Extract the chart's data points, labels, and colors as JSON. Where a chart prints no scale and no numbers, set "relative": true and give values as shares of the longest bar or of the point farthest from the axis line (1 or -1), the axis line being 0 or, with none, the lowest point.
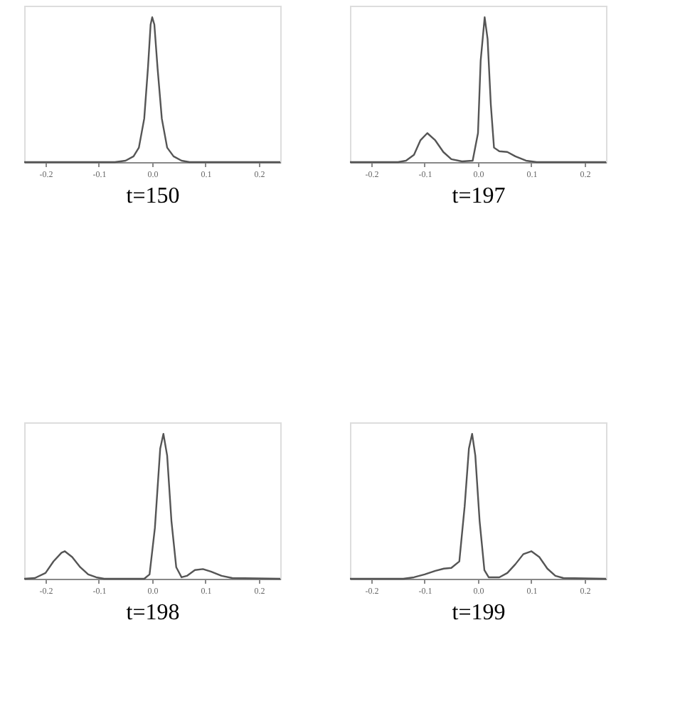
{
  "chart_data": [
    {
      "type": "line",
      "xlabel": "t=150",
      "relative": true,
      "grid": false,
      "tick_labels": "x",
      "xlim": [
        -0.24,
        0.24
      ],
      "xticks": [
        -0.2,
        -0.1,
        {
          "value": 0,
          "label": "0.0"
        },
        0.1,
        0.2
      ],
      "series": [
        {
          "color": "#555555",
          "x": [
            -0.24,
            -0.07,
            -0.05,
            -0.035,
            -0.025,
            -0.015,
            -0.008,
            -0.003,
            0,
            0.004,
            0.01,
            0.018,
            0.028,
            0.04,
            0.055,
            0.07,
            0.24
          ],
          "values": [
            0,
            0,
            0.01,
            0.04,
            0.1,
            0.3,
            0.65,
            0.95,
            1,
            0.95,
            0.65,
            0.3,
            0.1,
            0.04,
            0.01,
            0,
            0
          ]
        }
      ]
    },
    {
      "type": "line",
      "xlabel": "t=197",
      "relative": true,
      "grid": false,
      "tick_labels": "x",
      "xlim": [
        -0.24,
        0.24
      ],
      "xticks": [
        -0.2,
        -0.1,
        {
          "value": 0,
          "label": "0.0"
        },
        0.1,
        0.2
      ],
      "series": [
        {
          "color": "#555555",
          "x": [
            -0.24,
            -0.15,
            -0.135,
            -0.12,
            -0.108,
            -0.095,
            -0.08,
            -0.065,
            -0.05,
            -0.03,
            -0.01,
            0.0,
            0.005,
            0.0125,
            0.018,
            0.024,
            0.03,
            0.04,
            0.055,
            0.07,
            0.09,
            0.11,
            0.24
          ],
          "values": [
            0,
            0,
            0.01,
            0.05,
            0.15,
            0.2,
            0.15,
            0.07,
            0.02,
            0.005,
            0.01,
            0.2,
            0.7,
            1,
            0.85,
            0.4,
            0.1,
            0.075,
            0.07,
            0.04,
            0.01,
            0,
            0
          ]
        }
      ]
    },
    {
      "type": "line",
      "xlabel": "t=198",
      "relative": true,
      "grid": false,
      "tick_labels": "x",
      "xlim": [
        -0.24,
        0.24
      ],
      "xticks": [
        -0.2,
        -0.1,
        {
          "value": 0,
          "label": "0.0"
        },
        0.1,
        0.2
      ],
      "series": [
        {
          "color": "#555555",
          "x": [
            -0.24,
            -0.22,
            -0.2,
            -0.185,
            -0.17,
            -0.164,
            -0.15,
            -0.135,
            -0.12,
            -0.105,
            -0.09,
            -0.015,
            -0.005,
            0.005,
            0.015,
            0.021,
            0.028,
            0.036,
            0.045,
            0.055,
            0.065,
            0.08,
            0.095,
            0.11,
            0.13,
            0.15,
            0.24
          ],
          "values": [
            0,
            0.005,
            0.04,
            0.12,
            0.18,
            0.19,
            0.15,
            0.08,
            0.03,
            0.01,
            0,
            0,
            0.03,
            0.35,
            0.9,
            1,
            0.85,
            0.4,
            0.08,
            0.01,
            0.02,
            0.06,
            0.067,
            0.05,
            0.02,
            0.005,
            0
          ]
        }
      ]
    },
    {
      "type": "line",
      "xlabel": "t=199",
      "relative": true,
      "grid": false,
      "tick_labels": "x",
      "xlim": [
        -0.24,
        0.24
      ],
      "xticks": [
        -0.2,
        -0.1,
        {
          "value": 0,
          "label": "0.0"
        },
        0.1,
        0.2
      ],
      "series": [
        {
          "color": "#555555",
          "x": [
            -0.24,
            -0.14,
            -0.12,
            -0.1,
            -0.08,
            -0.064,
            -0.05,
            -0.035,
            -0.025,
            -0.017,
            -0.011,
            -0.005,
            0.003,
            0.012,
            0.02,
            0.04,
            0.055,
            0.07,
            0.085,
            0.1,
            0.115,
            0.13,
            0.145,
            0.16,
            0.24
          ],
          "values": [
            0,
            0,
            0.01,
            0.03,
            0.055,
            0.07,
            0.075,
            0.12,
            0.5,
            0.9,
            1,
            0.85,
            0.4,
            0.06,
            0.01,
            0.01,
            0.04,
            0.1,
            0.17,
            0.19,
            0.15,
            0.07,
            0.02,
            0.005,
            0
          ]
        }
      ]
    }
  ]
}
